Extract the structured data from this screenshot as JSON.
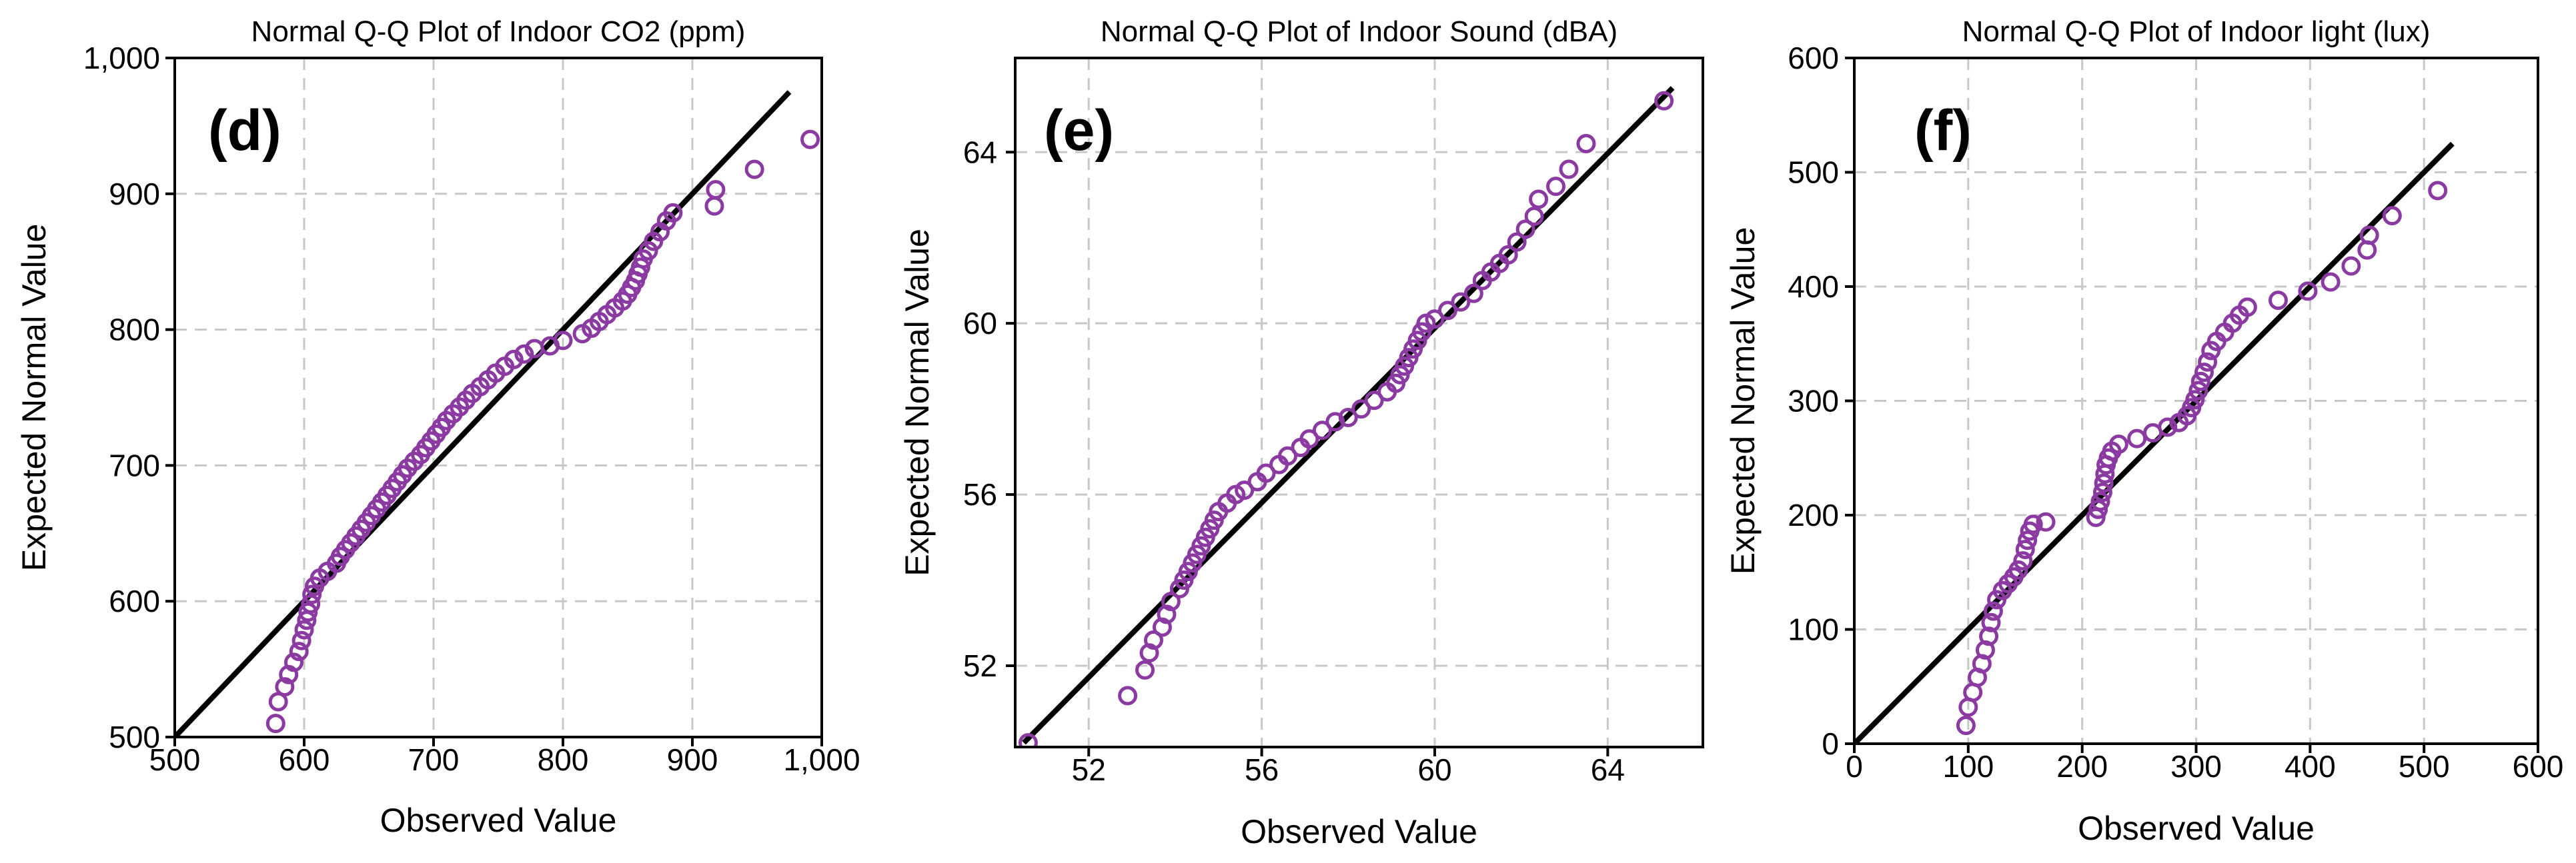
{
  "point_color": "#8a3aa0",
  "line_color": "#000000",
  "chart_data": [
    {
      "type": "scatter",
      "title": "Normal Q-Q Plot of Indoor CO2 (ppm)",
      "panel_label": "(d)",
      "xlabel": "Observed Value",
      "ylabel": "Expected Normal Value",
      "xlim": [
        500,
        1000
      ],
      "ylim": [
        500,
        1000
      ],
      "xticks": [
        500,
        600,
        700,
        800,
        900,
        1000
      ],
      "xtick_labels": [
        "500",
        "600",
        "700",
        "800",
        "900",
        "1,000"
      ],
      "yticks": [
        500,
        600,
        700,
        800,
        900,
        1000
      ],
      "ytick_labels": [
        "500",
        "600",
        "700",
        "800",
        "900",
        "1,000"
      ],
      "grid": true,
      "reference_line": [
        [
          500,
          500
        ],
        [
          975,
          975
        ]
      ],
      "points": [
        [
          578,
          510
        ],
        [
          580,
          526
        ],
        [
          585,
          537
        ],
        [
          588,
          546
        ],
        [
          592,
          555
        ],
        [
          596,
          563
        ],
        [
          598,
          571
        ],
        [
          600,
          579
        ],
        [
          602,
          586
        ],
        [
          603,
          592
        ],
        [
          605,
          598
        ],
        [
          606,
          605
        ],
        [
          608,
          611
        ],
        [
          612,
          617
        ],
        [
          618,
          622
        ],
        [
          625,
          628
        ],
        [
          628,
          633
        ],
        [
          632,
          638
        ],
        [
          636,
          643
        ],
        [
          640,
          648
        ],
        [
          644,
          653
        ],
        [
          648,
          658
        ],
        [
          652,
          663
        ],
        [
          656,
          668
        ],
        [
          660,
          673
        ],
        [
          664,
          678
        ],
        [
          668,
          683
        ],
        [
          672,
          688
        ],
        [
          676,
          693
        ],
        [
          680,
          698
        ],
        [
          685,
          703
        ],
        [
          690,
          708
        ],
        [
          694,
          713
        ],
        [
          698,
          718
        ],
        [
          702,
          723
        ],
        [
          706,
          728
        ],
        [
          710,
          733
        ],
        [
          715,
          738
        ],
        [
          720,
          743
        ],
        [
          725,
          748
        ],
        [
          730,
          753
        ],
        [
          736,
          758
        ],
        [
          742,
          763
        ],
        [
          748,
          768
        ],
        [
          755,
          773
        ],
        [
          762,
          778
        ],
        [
          770,
          782
        ],
        [
          778,
          786
        ],
        [
          790,
          788
        ],
        [
          800,
          792
        ],
        [
          815,
          797
        ],
        [
          822,
          801
        ],
        [
          828,
          806
        ],
        [
          834,
          811
        ],
        [
          840,
          816
        ],
        [
          846,
          821
        ],
        [
          850,
          826
        ],
        [
          853,
          831
        ],
        [
          856,
          836
        ],
        [
          858,
          841
        ],
        [
          860,
          846
        ],
        [
          862,
          852
        ],
        [
          866,
          858
        ],
        [
          870,
          865
        ],
        [
          875,
          872
        ],
        [
          880,
          880
        ],
        [
          885,
          886
        ],
        [
          917,
          891
        ],
        [
          918,
          903
        ],
        [
          948,
          918
        ],
        [
          991,
          940
        ]
      ]
    },
    {
      "type": "scatter",
      "title": "Normal Q-Q Plot of Indoor Sound (dBA)",
      "panel_label": "(e)",
      "xlabel": "Observed Value",
      "ylabel": "Expected Normal Value",
      "xlim": [
        50.3,
        66.2
      ],
      "ylim": [
        50.1,
        66.2
      ],
      "xticks": [
        52,
        56,
        60,
        64
      ],
      "xtick_labels": [
        "52",
        "56",
        "60",
        "64"
      ],
      "yticks": [
        52,
        56,
        60,
        64
      ],
      "ytick_labels": [
        "52",
        "56",
        "60",
        "64"
      ],
      "grid": true,
      "reference_line": [
        [
          50.5,
          50.2
        ],
        [
          65.5,
          65.5
        ]
      ],
      "points": [
        [
          50.6,
          50.2
        ],
        [
          52.9,
          51.3
        ],
        [
          53.3,
          51.9
        ],
        [
          53.4,
          52.3
        ],
        [
          53.5,
          52.6
        ],
        [
          53.7,
          52.9
        ],
        [
          53.8,
          53.2
        ],
        [
          53.9,
          53.5
        ],
        [
          54.1,
          53.8
        ],
        [
          54.2,
          54.0
        ],
        [
          54.3,
          54.2
        ],
        [
          54.4,
          54.4
        ],
        [
          54.5,
          54.6
        ],
        [
          54.6,
          54.8
        ],
        [
          54.7,
          55.0
        ],
        [
          54.8,
          55.2
        ],
        [
          54.9,
          55.4
        ],
        [
          55.0,
          55.6
        ],
        [
          55.2,
          55.8
        ],
        [
          55.4,
          56.0
        ],
        [
          55.6,
          56.1
        ],
        [
          55.9,
          56.3
        ],
        [
          56.1,
          56.5
        ],
        [
          56.4,
          56.7
        ],
        [
          56.6,
          56.9
        ],
        [
          56.9,
          57.1
        ],
        [
          57.1,
          57.3
        ],
        [
          57.4,
          57.5
        ],
        [
          57.7,
          57.7
        ],
        [
          58.0,
          57.8
        ],
        [
          58.3,
          58.0
        ],
        [
          58.6,
          58.2
        ],
        [
          58.9,
          58.4
        ],
        [
          59.1,
          58.6
        ],
        [
          59.2,
          58.8
        ],
        [
          59.3,
          59.0
        ],
        [
          59.4,
          59.2
        ],
        [
          59.5,
          59.4
        ],
        [
          59.6,
          59.6
        ],
        [
          59.7,
          59.8
        ],
        [
          59.8,
          60.0
        ],
        [
          60.0,
          60.1
        ],
        [
          60.3,
          60.3
        ],
        [
          60.6,
          60.5
        ],
        [
          60.9,
          60.7
        ],
        [
          61.1,
          61.0
        ],
        [
          61.3,
          61.2
        ],
        [
          61.5,
          61.4
        ],
        [
          61.7,
          61.6
        ],
        [
          61.9,
          61.9
        ],
        [
          62.1,
          62.2
        ],
        [
          62.3,
          62.5
        ],
        [
          62.4,
          62.9
        ],
        [
          62.8,
          63.2
        ],
        [
          63.1,
          63.6
        ],
        [
          63.5,
          64.2
        ],
        [
          65.3,
          65.2
        ]
      ]
    },
    {
      "type": "scatter",
      "title": "Normal Q-Q Plot of Indoor light (lux)",
      "panel_label": "(f)",
      "xlabel": "Observed Value",
      "ylabel": "Expected Normal Value",
      "xlim": [
        0,
        600
      ],
      "ylim": [
        0,
        600
      ],
      "xticks": [
        0,
        100,
        200,
        300,
        400,
        500,
        600
      ],
      "xtick_labels": [
        "0",
        "100",
        "200",
        "300",
        "400",
        "500",
        "600"
      ],
      "yticks": [
        0,
        100,
        200,
        300,
        400,
        500,
        600
      ],
      "ytick_labels": [
        "0",
        "100",
        "200",
        "300",
        "400",
        "500",
        "600"
      ],
      "grid": true,
      "reference_line": [
        [
          0,
          0
        ],
        [
          525,
          525
        ]
      ],
      "points": [
        [
          98,
          16
        ],
        [
          100,
          32
        ],
        [
          104,
          45
        ],
        [
          108,
          58
        ],
        [
          112,
          70
        ],
        [
          115,
          82
        ],
        [
          118,
          94
        ],
        [
          120,
          106
        ],
        [
          122,
          116
        ],
        [
          125,
          126
        ],
        [
          130,
          134
        ],
        [
          135,
          140
        ],
        [
          140,
          146
        ],
        [
          144,
          152
        ],
        [
          148,
          160
        ],
        [
          150,
          170
        ],
        [
          152,
          178
        ],
        [
          154,
          186
        ],
        [
          157,
          192
        ],
        [
          168,
          194
        ],
        [
          212,
          198
        ],
        [
          214,
          205
        ],
        [
          216,
          212
        ],
        [
          218,
          220
        ],
        [
          219,
          228
        ],
        [
          220,
          236
        ],
        [
          221,
          244
        ],
        [
          223,
          250
        ],
        [
          226,
          256
        ],
        [
          232,
          262
        ],
        [
          248,
          267
        ],
        [
          262,
          272
        ],
        [
          275,
          277
        ],
        [
          285,
          281
        ],
        [
          292,
          287
        ],
        [
          296,
          294
        ],
        [
          299,
          301
        ],
        [
          302,
          309
        ],
        [
          304,
          317
        ],
        [
          307,
          325
        ],
        [
          310,
          334
        ],
        [
          313,
          344
        ],
        [
          318,
          352
        ],
        [
          325,
          360
        ],
        [
          332,
          368
        ],
        [
          338,
          375
        ],
        [
          345,
          382
        ],
        [
          372,
          388
        ],
        [
          398,
          396
        ],
        [
          418,
          404
        ],
        [
          436,
          418
        ],
        [
          450,
          432
        ],
        [
          452,
          445
        ],
        [
          472,
          462
        ],
        [
          512,
          484
        ]
      ]
    }
  ]
}
